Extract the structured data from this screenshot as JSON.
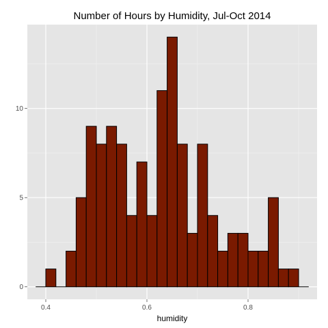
{
  "chart_data": {
    "type": "bar",
    "title": "Number of Hours by Humidity, Jul-Oct 2014",
    "xlabel": "humidity",
    "ylabel": "",
    "bin_width": 0.02,
    "bins_start": [
      0.38,
      0.4,
      0.42,
      0.44,
      0.46,
      0.48,
      0.5,
      0.52,
      0.54,
      0.56,
      0.58,
      0.6,
      0.62,
      0.64,
      0.66,
      0.68,
      0.7,
      0.72,
      0.74,
      0.76,
      0.78,
      0.8,
      0.82,
      0.84,
      0.86,
      0.88,
      0.9
    ],
    "values": [
      0,
      1,
      0,
      2,
      5,
      9,
      8,
      9,
      8,
      4,
      7,
      4,
      11,
      14,
      8,
      3,
      8,
      4,
      2,
      3,
      3,
      2,
      2,
      5,
      1,
      1,
      0
    ],
    "xlim": [
      0.3635,
      0.9365
    ],
    "ylim": [
      -0.7,
      14.7
    ],
    "x_ticks": [
      0.4,
      0.6,
      0.8
    ],
    "x_tick_labels": [
      "0.4",
      "0.6",
      "0.8"
    ],
    "y_ticks": [
      0,
      5,
      10
    ],
    "y_tick_labels": [
      "0",
      "5",
      "10"
    ],
    "grid": true,
    "colors": {
      "bar_fill": "#7a1a00",
      "bar_stroke": "#000000",
      "panel_bg": "#e5e5e5",
      "grid_major": "#ffffff",
      "grid_minor": "#f2f2f2"
    }
  }
}
